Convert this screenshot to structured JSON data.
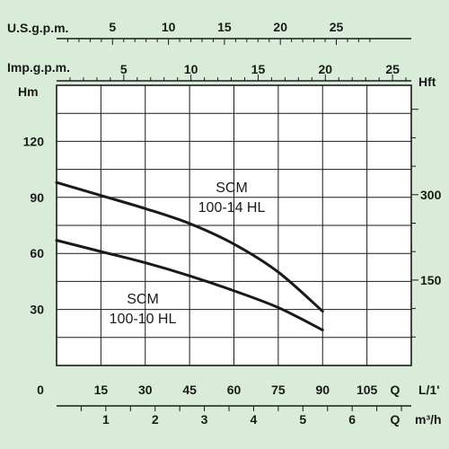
{
  "chart_data": {
    "type": "line",
    "axes": {
      "usgpm": {
        "label": "U.S.g.p.m.",
        "ticks": [
          5,
          10,
          15,
          20,
          25
        ]
      },
      "impgpm": {
        "label": "Imp.g.p.m.",
        "ticks": [
          5,
          10,
          15,
          20,
          25
        ]
      },
      "left": {
        "label": "Hm",
        "ticks": [
          30,
          60,
          90,
          120
        ],
        "range": [
          0,
          150
        ]
      },
      "right": {
        "label": "Hft",
        "ticks": [
          150,
          300
        ]
      },
      "bottom_lmin": {
        "label": "L/1'",
        "unit_letter": "Q",
        "ticks": [
          0,
          15,
          30,
          45,
          60,
          75,
          90,
          105
        ],
        "range": [
          0,
          120
        ]
      },
      "bottom_m3h": {
        "label": "m³/h",
        "unit_letter": "Q",
        "ticks": [
          1,
          2,
          3,
          4,
          5,
          6
        ]
      }
    },
    "grid": true,
    "series": [
      {
        "name": "SCM 100-14 HL",
        "label_lines": [
          "SCM",
          "100-14 HL"
        ],
        "x": [
          0,
          15,
          30,
          45,
          60,
          75,
          90
        ],
        "y": [
          98,
          91,
          84,
          76,
          65,
          50,
          29
        ]
      },
      {
        "name": "SCM 100-10 HL",
        "label_lines": [
          "SCM",
          "100-10 HL"
        ],
        "x": [
          0,
          15,
          30,
          45,
          60,
          75,
          90
        ],
        "y": [
          67,
          61,
          55,
          48,
          40,
          31,
          19
        ]
      }
    ]
  }
}
